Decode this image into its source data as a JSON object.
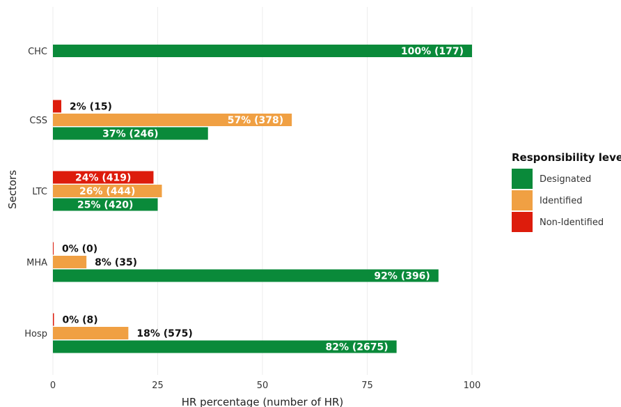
{
  "chart_data": {
    "type": "bar",
    "orientation": "horizontal",
    "xlabel": "HR percentage (number of HR)",
    "ylabel": "Sectors",
    "xlim": [
      0,
      100
    ],
    "xticks": [
      0,
      25,
      50,
      75,
      100
    ],
    "grid": "vertical",
    "legend": {
      "title": "Responsibility level",
      "position": "right",
      "entries": [
        {
          "name": "Designated",
          "color": "#0a8a3a"
        },
        {
          "name": "Identified",
          "color": "#f0a043"
        },
        {
          "name": "Non-Identified",
          "color": "#dd1c0c"
        }
      ]
    },
    "categories": [
      {
        "name": "CHC",
        "bars": [
          {
            "series": "Designated",
            "value": 100,
            "label": "100% (177)"
          }
        ]
      },
      {
        "name": "CSS",
        "bars": [
          {
            "series": "Non-Identified",
            "value": 2,
            "label": "2% (15)"
          },
          {
            "series": "Identified",
            "value": 57,
            "label": "57% (378)"
          },
          {
            "series": "Designated",
            "value": 37,
            "label": "37% (246)"
          }
        ]
      },
      {
        "name": "LTC",
        "bars": [
          {
            "series": "Non-Identified",
            "value": 24,
            "label": "24% (419)"
          },
          {
            "series": "Identified",
            "value": 26,
            "label": "26% (444)"
          },
          {
            "series": "Designated",
            "value": 25,
            "label": "25% (420)"
          }
        ]
      },
      {
        "name": "MHA",
        "bars": [
          {
            "series": "Non-Identified",
            "value": 0,
            "label": "0% (0)"
          },
          {
            "series": "Identified",
            "value": 8,
            "label": "8% (35)"
          },
          {
            "series": "Designated",
            "value": 92,
            "label": "92% (396)"
          }
        ]
      },
      {
        "name": "Hosp",
        "bars": [
          {
            "series": "Non-Identified",
            "value": 0.25,
            "label": "0% (8)"
          },
          {
            "series": "Identified",
            "value": 18,
            "label": "18% (575)"
          },
          {
            "series": "Designated",
            "value": 82,
            "label": "82% (2675)"
          }
        ]
      }
    ]
  }
}
